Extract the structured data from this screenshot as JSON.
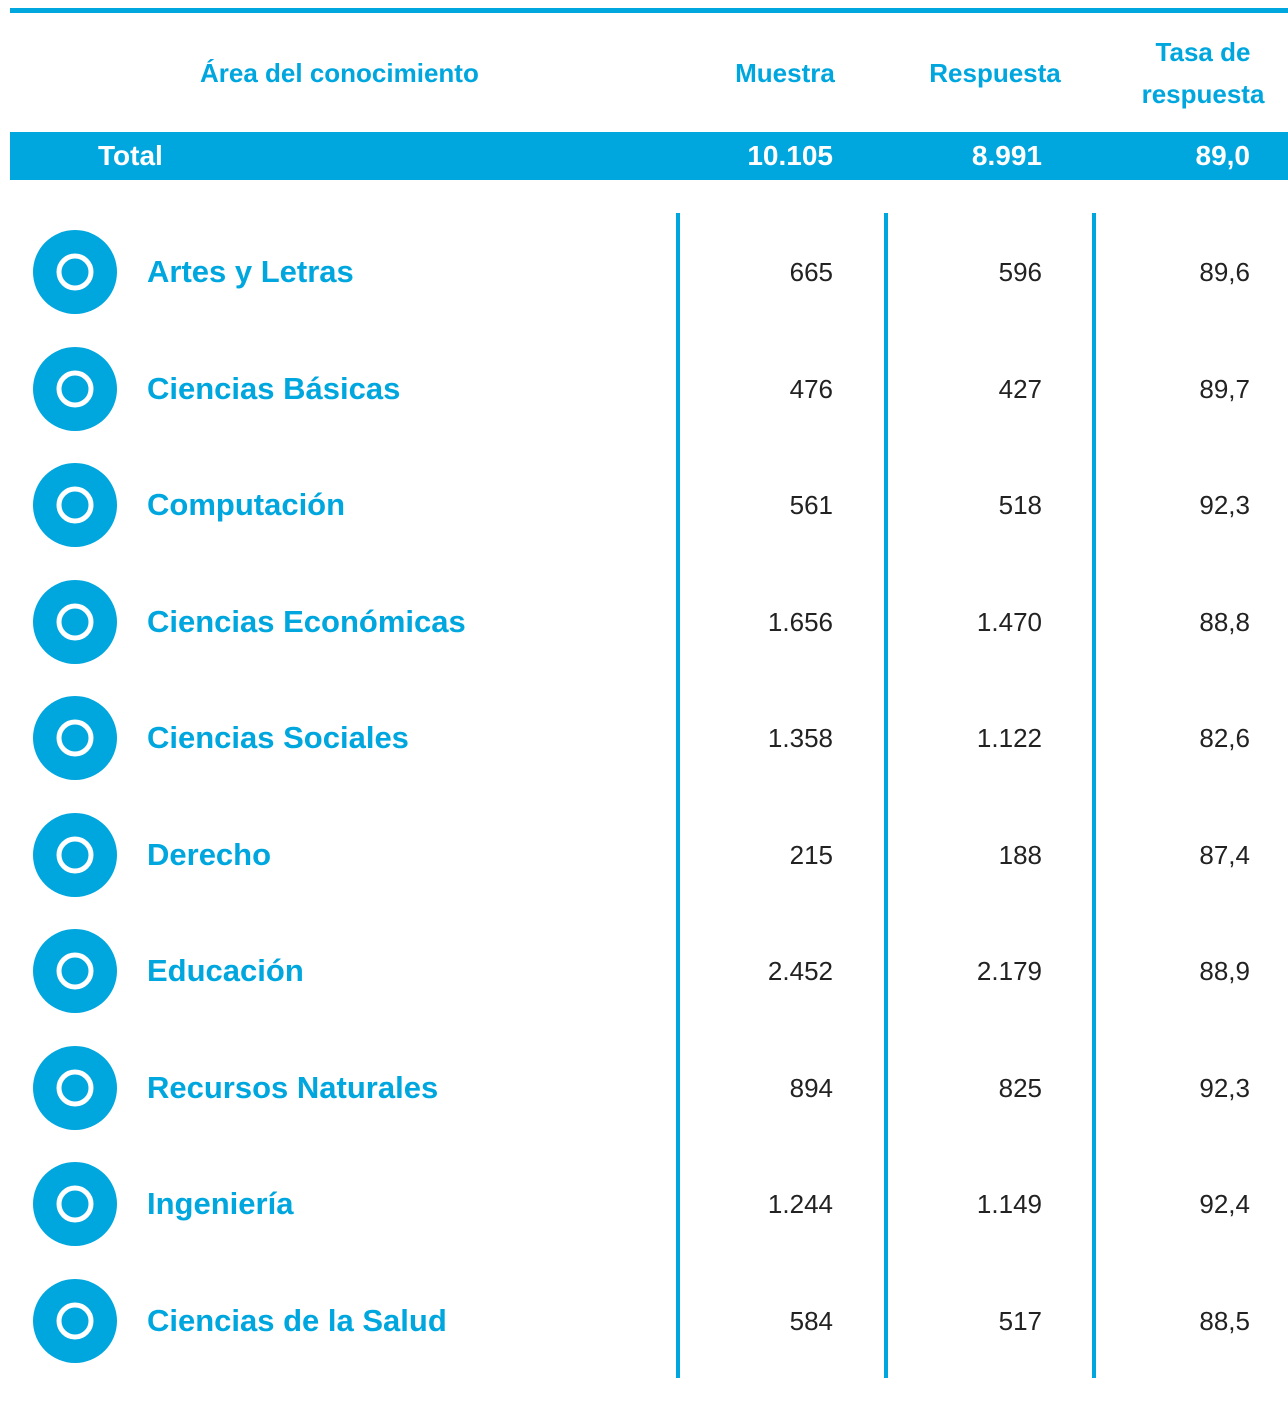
{
  "header": {
    "area": "Área del conocimiento",
    "muestra": "Muestra",
    "respuesta": "Respuesta",
    "tasa": "Tasa de respuesta"
  },
  "total": {
    "label": "Total",
    "values": [
      "10.105",
      "8.991",
      "89,0"
    ]
  },
  "rows": [
    {
      "name": "Artes y Letras",
      "values": [
        "665",
        "596",
        "89,6"
      ]
    },
    {
      "name": "Ciencias Básicas",
      "values": [
        "476",
        "427",
        "89,7"
      ]
    },
    {
      "name": "Computación",
      "values": [
        "561",
        "518",
        "92,3"
      ]
    },
    {
      "name": "Ciencias Económicas",
      "values": [
        "1.656",
        "1.470",
        "88,8"
      ]
    },
    {
      "name": "Ciencias Sociales",
      "values": [
        "1.358",
        "1.122",
        "82,6"
      ]
    },
    {
      "name": "Derecho",
      "values": [
        "215",
        "188",
        "87,4"
      ]
    },
    {
      "name": "Educación",
      "values": [
        "2.452",
        "2.179",
        "88,9"
      ]
    },
    {
      "name": "Recursos Naturales",
      "values": [
        "894",
        "825",
        "92,3"
      ]
    },
    {
      "name": "Ingeniería",
      "values": [
        "1.244",
        "1.149",
        "92,4"
      ]
    },
    {
      "name": "Ciencias de la Salud",
      "values": [
        "584",
        "517",
        "88,5"
      ]
    }
  ]
}
